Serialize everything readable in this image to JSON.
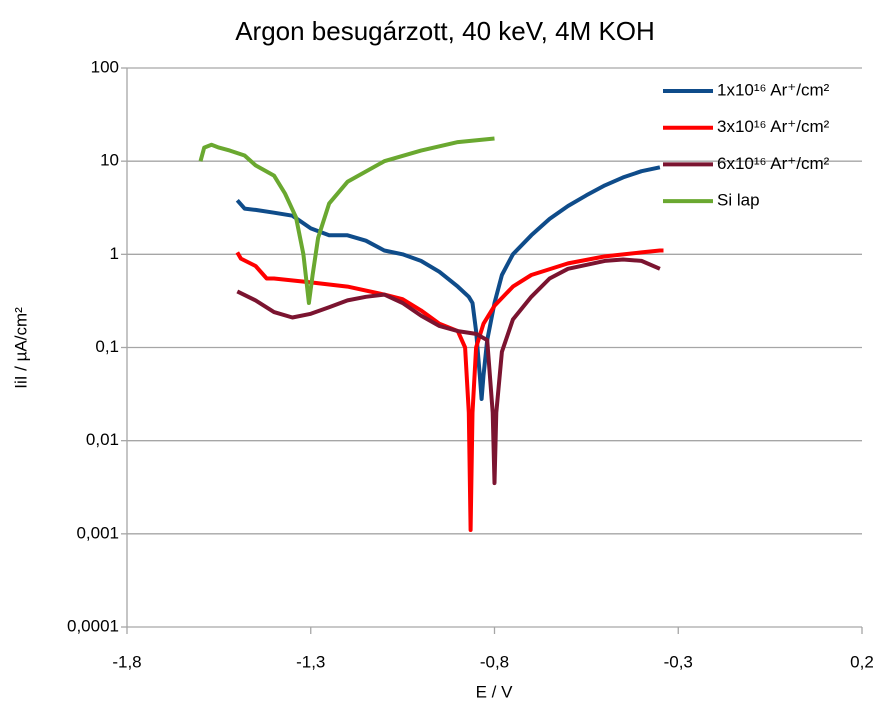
{
  "chart_data": {
    "type": "line",
    "title": "Argon besugárzott, 40 keV, 4M KOH",
    "x_label": "E / V",
    "y_label": "IiI / µA/cm²",
    "yscale": "log",
    "grid": true,
    "legend": "upper right",
    "xlim": [
      -1.8,
      0.2
    ],
    "xticks": [
      {
        "value": -1.8,
        "label": "-1,8"
      },
      {
        "value": -1.3,
        "label": "-1,3"
      },
      {
        "value": -0.8,
        "label": "-0,8"
      },
      {
        "value": -0.3,
        "label": "-0,3"
      },
      {
        "value": 0.2,
        "label": "0,2"
      }
    ],
    "ylim": [
      0.0001,
      100
    ],
    "yticks": [
      {
        "value": 0.0001,
        "label": "0,0001"
      },
      {
        "value": 0.001,
        "label": "0,001"
      },
      {
        "value": 0.01,
        "label": "0,01"
      },
      {
        "value": 0.1,
        "label": "0,1"
      },
      1,
      10,
      100
    ],
    "series": [
      {
        "name": "1x10¹⁶ Ar⁺/cm²",
        "color": "#0f4c8a",
        "x": [
          -1.5,
          -1.48,
          -1.45,
          -1.4,
          -1.35,
          -1.3,
          -1.25,
          -1.2,
          -1.15,
          -1.1,
          -1.05,
          -1.0,
          -0.95,
          -0.9,
          -0.87,
          -0.86,
          -0.85,
          -0.84,
          -0.835,
          -0.83,
          -0.82,
          -0.8,
          -0.78,
          -0.75,
          -0.7,
          -0.65,
          -0.6,
          -0.55,
          -0.5,
          -0.45,
          -0.4,
          -0.35
        ],
        "values": [
          3.8,
          3.1,
          3.0,
          2.8,
          2.6,
          1.9,
          1.6,
          1.6,
          1.4,
          1.1,
          1.0,
          0.85,
          0.65,
          0.45,
          0.35,
          0.3,
          0.15,
          0.05,
          0.028,
          0.05,
          0.12,
          0.3,
          0.6,
          1.0,
          1.6,
          2.4,
          3.3,
          4.3,
          5.5,
          6.7,
          7.8,
          8.6
        ]
      },
      {
        "name": "3x10¹⁶ Ar⁺/cm²",
        "color": "#ff0000",
        "x": [
          -1.5,
          -1.49,
          -1.45,
          -1.42,
          -1.4,
          -1.3,
          -1.2,
          -1.1,
          -1.05,
          -1.0,
          -0.95,
          -0.9,
          -0.88,
          -0.87,
          -0.865,
          -0.86,
          -0.85,
          -0.83,
          -0.8,
          -0.75,
          -0.7,
          -0.6,
          -0.5,
          -0.4,
          -0.35,
          -0.34
        ],
        "values": [
          1.05,
          0.9,
          0.75,
          0.55,
          0.55,
          0.5,
          0.45,
          0.37,
          0.33,
          0.25,
          0.18,
          0.15,
          0.1,
          0.02,
          0.0011,
          0.02,
          0.1,
          0.18,
          0.28,
          0.45,
          0.6,
          0.8,
          0.95,
          1.05,
          1.1,
          1.1
        ]
      },
      {
        "name": "6x10¹⁶ Ar⁺/cm²",
        "color": "#7b1430",
        "x": [
          -1.5,
          -1.45,
          -1.4,
          -1.35,
          -1.3,
          -1.25,
          -1.2,
          -1.15,
          -1.1,
          -1.05,
          -1.0,
          -0.95,
          -0.9,
          -0.85,
          -0.82,
          -0.805,
          -0.8,
          -0.795,
          -0.78,
          -0.75,
          -0.7,
          -0.65,
          -0.6,
          -0.5,
          -0.45,
          -0.4,
          -0.35
        ],
        "values": [
          0.4,
          0.32,
          0.24,
          0.21,
          0.23,
          0.27,
          0.32,
          0.35,
          0.37,
          0.3,
          0.22,
          0.17,
          0.15,
          0.14,
          0.12,
          0.02,
          0.0035,
          0.02,
          0.09,
          0.2,
          0.35,
          0.55,
          0.7,
          0.85,
          0.88,
          0.85,
          0.7
        ]
      },
      {
        "name": "Si lap",
        "color": "#6aa830",
        "x": [
          -1.6,
          -1.59,
          -1.57,
          -1.55,
          -1.52,
          -1.48,
          -1.45,
          -1.4,
          -1.37,
          -1.34,
          -1.32,
          -1.305,
          -1.295,
          -1.28,
          -1.25,
          -1.2,
          -1.1,
          -1.0,
          -0.9,
          -0.8
        ],
        "values": [
          10,
          14,
          15,
          14,
          13,
          11.5,
          9,
          7,
          4.5,
          2.5,
          1,
          0.3,
          0.6,
          1.5,
          3.5,
          6,
          10,
          13,
          16,
          17.5
        ]
      }
    ]
  }
}
